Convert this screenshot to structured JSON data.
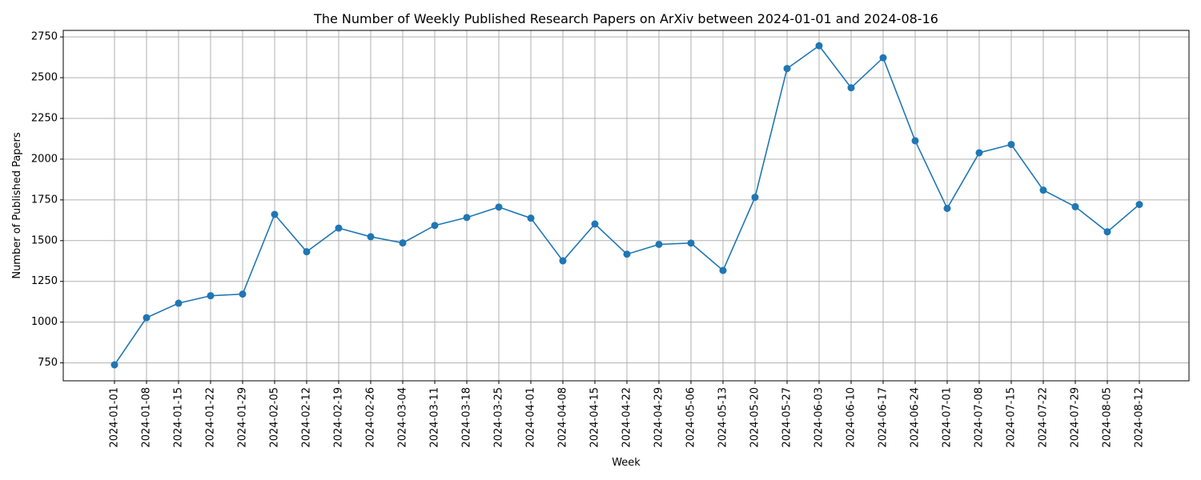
{
  "chart_data": {
    "type": "line",
    "title": "The Number of Weekly Published Research Papers on ArXiv between 2024-01-01 and 2024-08-16",
    "xlabel": "Week",
    "ylabel": "Number of Published Papers",
    "ylim": [
      640,
      2790
    ],
    "yticks": [
      750,
      1000,
      1250,
      1500,
      1750,
      2000,
      2250,
      2500,
      2750
    ],
    "grid": true,
    "color": "#1f77b4",
    "categories": [
      "2024-01-01",
      "2024-01-08",
      "2024-01-15",
      "2024-01-22",
      "2024-01-29",
      "2024-02-05",
      "2024-02-12",
      "2024-02-19",
      "2024-02-26",
      "2024-03-04",
      "2024-03-11",
      "2024-03-18",
      "2024-03-25",
      "2024-04-01",
      "2024-04-08",
      "2024-04-15",
      "2024-04-22",
      "2024-04-29",
      "2024-05-06",
      "2024-05-13",
      "2024-05-20",
      "2024-05-27",
      "2024-06-03",
      "2024-06-10",
      "2024-06-17",
      "2024-06-24",
      "2024-07-01",
      "2024-07-08",
      "2024-07-15",
      "2024-07-22",
      "2024-07-29",
      "2024-08-05",
      "2024-08-12"
    ],
    "values": [
      738,
      1027,
      1116,
      1162,
      1172,
      1661,
      1432,
      1577,
      1524,
      1486,
      1593,
      1642,
      1706,
      1638,
      1376,
      1602,
      1417,
      1477,
      1485,
      1317,
      1766,
      2556,
      2696,
      2438,
      2622,
      2113,
      1698,
      2039,
      2090,
      1810,
      1708,
      1554,
      1722
    ]
  }
}
